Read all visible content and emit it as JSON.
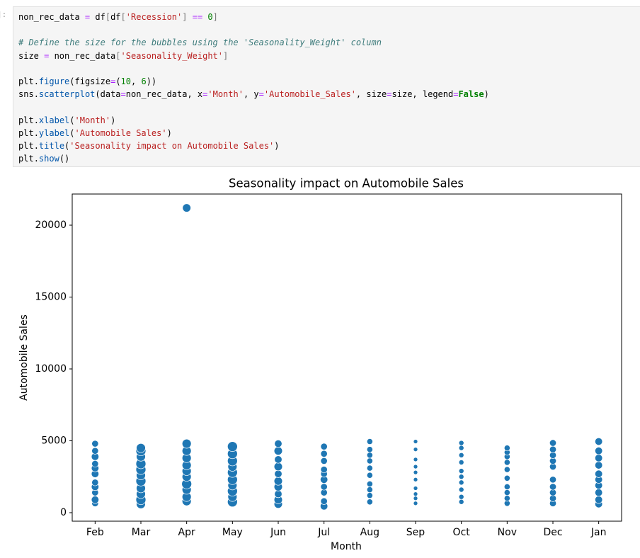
{
  "prompt": "]:",
  "code": {
    "lines": [
      [
        {
          "t": "non_rec_data "
        },
        {
          "t": "=",
          "c": "#aa22ff"
        },
        {
          "t": " df"
        },
        {
          "t": "[",
          "c": "#777777"
        },
        {
          "t": "df"
        },
        {
          "t": "[",
          "c": "#777777"
        },
        {
          "t": "'Recession'",
          "c": "#ba2121"
        },
        {
          "t": "]",
          "c": "#777777"
        },
        {
          "t": " "
        },
        {
          "t": "==",
          "c": "#aa22ff"
        },
        {
          "t": " "
        },
        {
          "t": "0",
          "c": "#008000"
        },
        {
          "t": "]",
          "c": "#777777"
        }
      ],
      [],
      [
        {
          "t": "# Define the size for the bubbles using the 'Seasonality_Weight' column",
          "c": "#3d7b7b",
          "i": true
        }
      ],
      [
        {
          "t": "size "
        },
        {
          "t": "=",
          "c": "#aa22ff"
        },
        {
          "t": " non_rec_data"
        },
        {
          "t": "[",
          "c": "#777777"
        },
        {
          "t": "'Seasonality_Weight'",
          "c": "#ba2121"
        },
        {
          "t": "]",
          "c": "#777777"
        }
      ],
      [],
      [
        {
          "t": "plt"
        },
        {
          "t": "."
        },
        {
          "t": "figure",
          "c": "#0055aa"
        },
        {
          "t": "(figsize"
        },
        {
          "t": "=",
          "c": "#aa22ff"
        },
        {
          "t": "("
        },
        {
          "t": "10",
          "c": "#008000"
        },
        {
          "t": ", "
        },
        {
          "t": "6",
          "c": "#008000"
        },
        {
          "t": "))"
        }
      ],
      [
        {
          "t": "sns"
        },
        {
          "t": "."
        },
        {
          "t": "scatterplot",
          "c": "#0055aa"
        },
        {
          "t": "(data"
        },
        {
          "t": "=",
          "c": "#aa22ff"
        },
        {
          "t": "non_rec_data, x"
        },
        {
          "t": "=",
          "c": "#aa22ff"
        },
        {
          "t": "'Month'",
          "c": "#ba2121"
        },
        {
          "t": ", y"
        },
        {
          "t": "=",
          "c": "#aa22ff"
        },
        {
          "t": "'Automobile_Sales'",
          "c": "#ba2121"
        },
        {
          "t": ", size"
        },
        {
          "t": "=",
          "c": "#aa22ff"
        },
        {
          "t": "size, legend"
        },
        {
          "t": "=",
          "c": "#aa22ff"
        },
        {
          "t": "False",
          "c": "#008000",
          "b": true
        },
        {
          "t": ")"
        }
      ],
      [],
      [
        {
          "t": "plt"
        },
        {
          "t": "."
        },
        {
          "t": "xlabel",
          "c": "#0055aa"
        },
        {
          "t": "("
        },
        {
          "t": "'Month'",
          "c": "#ba2121"
        },
        {
          "t": ")"
        }
      ],
      [
        {
          "t": "plt"
        },
        {
          "t": "."
        },
        {
          "t": "ylabel",
          "c": "#0055aa"
        },
        {
          "t": "("
        },
        {
          "t": "'Automobile Sales'",
          "c": "#ba2121"
        },
        {
          "t": ")"
        }
      ],
      [
        {
          "t": "plt"
        },
        {
          "t": "."
        },
        {
          "t": "title",
          "c": "#0055aa"
        },
        {
          "t": "("
        },
        {
          "t": "'Seasonality impact on Automobile Sales'",
          "c": "#ba2121"
        },
        {
          "t": ")"
        }
      ],
      [
        {
          "t": "plt"
        },
        {
          "t": "."
        },
        {
          "t": "show",
          "c": "#0055aa"
        },
        {
          "t": "()"
        }
      ]
    ]
  },
  "chart_data": {
    "type": "scatter",
    "title": "Seasonality impact on Automobile Sales",
    "x_label": "Month",
    "y_label": "Automobile Sales",
    "color": "#1f77b4",
    "categories": [
      "Feb",
      "Mar",
      "Apr",
      "May",
      "Jun",
      "Jul",
      "Aug",
      "Sep",
      "Oct",
      "Nov",
      "Dec",
      "Jan"
    ],
    "ylim": [
      -591,
      22167
    ],
    "yticks": [
      0,
      5000,
      10000,
      15000,
      20000
    ],
    "x": [
      "Feb",
      "Feb",
      "Feb",
      "Feb",
      "Feb",
      "Feb",
      "Feb",
      "Feb",
      "Feb",
      "Feb",
      "Feb",
      "Mar",
      "Mar",
      "Mar",
      "Mar",
      "Mar",
      "Mar",
      "Mar",
      "Mar",
      "Mar",
      "Mar",
      "Mar",
      "Apr",
      "Apr",
      "Apr",
      "Apr",
      "Apr",
      "Apr",
      "Apr",
      "Apr",
      "Apr",
      "Apr",
      "Apr",
      "May",
      "May",
      "May",
      "May",
      "May",
      "May",
      "May",
      "May",
      "May",
      "May",
      "Jun",
      "Jun",
      "Jun",
      "Jun",
      "Jun",
      "Jun",
      "Jun",
      "Jun",
      "Jun",
      "Jun",
      "Jul",
      "Jul",
      "Jul",
      "Jul",
      "Jul",
      "Jul",
      "Jul",
      "Jul",
      "Jul",
      "Jul",
      "Aug",
      "Aug",
      "Aug",
      "Aug",
      "Aug",
      "Aug",
      "Aug",
      "Aug",
      "Aug",
      "Aug",
      "Sep",
      "Sep",
      "Sep",
      "Sep",
      "Sep",
      "Sep",
      "Sep",
      "Sep",
      "Sep",
      "Sep",
      "Oct",
      "Oct",
      "Oct",
      "Oct",
      "Oct",
      "Oct",
      "Oct",
      "Oct",
      "Oct",
      "Oct",
      "Nov",
      "Nov",
      "Nov",
      "Nov",
      "Nov",
      "Nov",
      "Nov",
      "Nov",
      "Nov",
      "Nov",
      "Dec",
      "Dec",
      "Dec",
      "Dec",
      "Dec",
      "Dec",
      "Dec",
      "Dec",
      "Dec",
      "Dec",
      "Jan",
      "Jan",
      "Jan",
      "Jan",
      "Jan",
      "Jan",
      "Jan",
      "Jan",
      "Jan",
      "Jan"
    ],
    "values": [
      650,
      900,
      1400,
      1800,
      2100,
      2700,
      3100,
      3400,
      3900,
      4300,
      4800,
      600,
      900,
      1300,
      1700,
      2200,
      2600,
      3000,
      3400,
      3900,
      4300,
      4500,
      800,
      1100,
      1600,
      2000,
      2500,
      2900,
      3300,
      3800,
      4300,
      4800,
      21200,
      750,
      1100,
      1500,
      1900,
      2300,
      2800,
      3200,
      3600,
      4100,
      4600,
      600,
      900,
      1300,
      1800,
      2200,
      2700,
      3200,
      3700,
      4300,
      4800,
      450,
      800,
      1400,
      1800,
      2300,
      2700,
      3000,
      3600,
      4100,
      4600,
      750,
      1200,
      1600,
      2000,
      2600,
      3100,
      3600,
      4000,
      4400,
      4950,
      650,
      1000,
      1300,
      1700,
      2300,
      2800,
      3200,
      3700,
      4400,
      4950,
      750,
      1100,
      1600,
      2100,
      2500,
      2900,
      3500,
      4000,
      4500,
      4850,
      650,
      1000,
      1400,
      1800,
      2400,
      3000,
      3500,
      3900,
      4200,
      4500,
      650,
      1000,
      1400,
      1800,
      2300,
      3200,
      3600,
      4000,
      4400,
      4850,
      600,
      900,
      1400,
      1900,
      2300,
      2700,
      3300,
      3800,
      4300,
      4950
    ],
    "sizes": [
      0.5,
      0.6,
      0.5,
      0.6,
      0.5,
      0.6,
      0.6,
      0.5,
      0.6,
      0.5,
      0.5,
      0.8,
      0.9,
      0.8,
      0.8,
      0.9,
      0.8,
      0.9,
      0.9,
      0.8,
      0.9,
      0.8,
      0.8,
      0.8,
      0.8,
      0.9,
      0.8,
      0.8,
      0.8,
      0.8,
      0.8,
      0.8,
      0.7,
      0.9,
      0.8,
      0.9,
      0.8,
      0.9,
      0.9,
      0.8,
      0.9,
      0.9,
      0.9,
      0.7,
      0.7,
      0.6,
      0.7,
      0.7,
      0.6,
      0.7,
      0.6,
      0.7,
      0.6,
      0.6,
      0.5,
      0.5,
      0.5,
      0.6,
      0.5,
      0.5,
      0.5,
      0.5,
      0.5,
      0.4,
      0.4,
      0.4,
      0.4,
      0.4,
      0.4,
      0.4,
      0.4,
      0.4,
      0.4,
      0.2,
      0.2,
      0.2,
      0.2,
      0.2,
      0.2,
      0.2,
      0.2,
      0.2,
      0.2,
      0.3,
      0.3,
      0.3,
      0.3,
      0.3,
      0.3,
      0.3,
      0.3,
      0.3,
      0.3,
      0.4,
      0.4,
      0.4,
      0.4,
      0.4,
      0.4,
      0.4,
      0.4,
      0.4,
      0.4,
      0.5,
      0.5,
      0.5,
      0.5,
      0.5,
      0.5,
      0.5,
      0.5,
      0.5,
      0.5,
      0.6,
      0.6,
      0.6,
      0.6,
      0.6,
      0.6,
      0.6,
      0.6,
      0.6,
      0.6
    ]
  }
}
